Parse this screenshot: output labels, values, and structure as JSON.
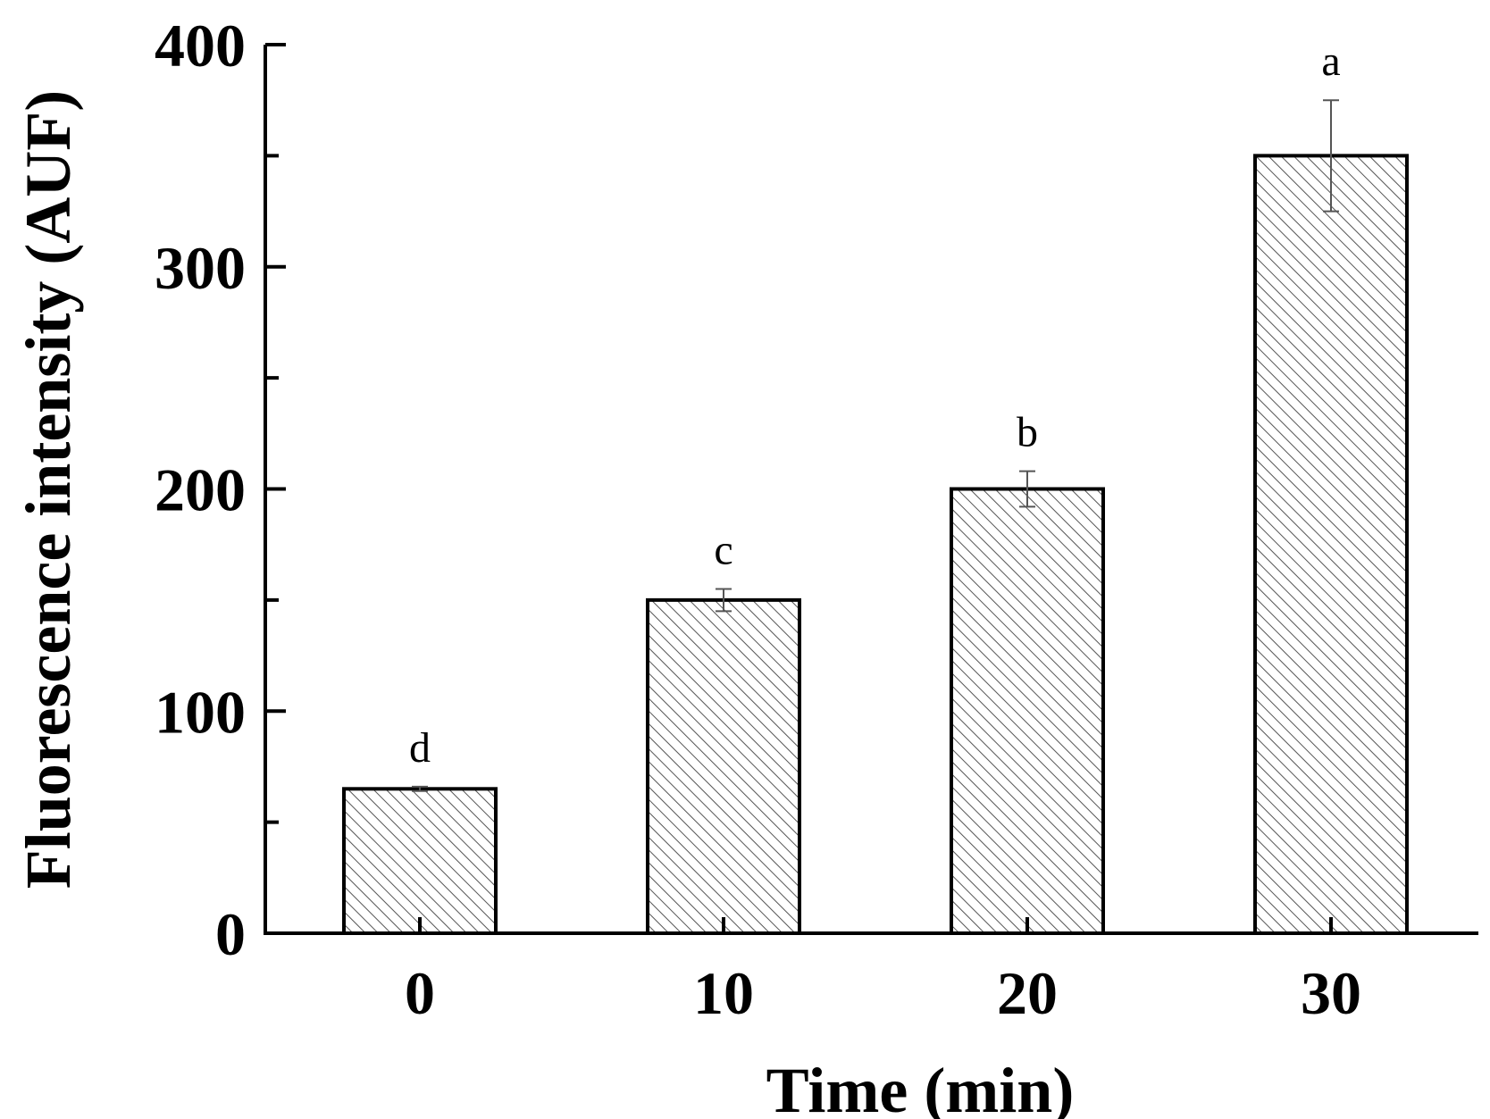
{
  "chart_data": {
    "type": "bar",
    "categories": [
      "0",
      "10",
      "20",
      "30"
    ],
    "values": [
      65,
      150,
      200,
      350
    ],
    "errors": [
      1,
      5,
      8,
      25
    ],
    "significance_letters": [
      "d",
      "c",
      "b",
      "a"
    ],
    "title": "",
    "xlabel": "Time (min)",
    "ylabel": "Fluorescence intensity (AUF)",
    "ylim": [
      0,
      400
    ],
    "yticks": [
      "0",
      "100",
      "200",
      "300",
      "400"
    ],
    "grid": false,
    "bar_fill": "diagonal-hatch",
    "colors": {
      "bar_edge": "#000000",
      "hatch": "#555555",
      "bar_background": "#ffffff",
      "error_bar": "#555555",
      "axis": "#000000"
    }
  }
}
